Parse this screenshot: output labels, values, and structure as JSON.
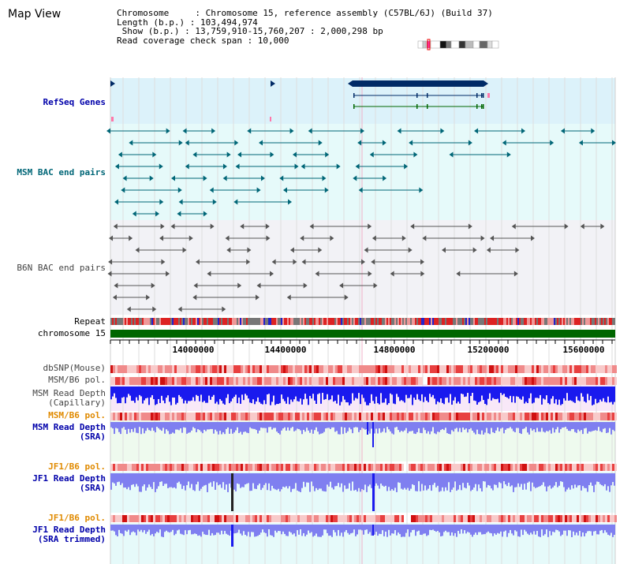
{
  "header": {
    "title": "Map View",
    "info_lines": [
      "Chromosome     : Chromosome 15, reference assembly (C57BL/6J) (Build 37)",
      "Length (b.p.) : 103,494,974",
      " Show (b.p.) : 13,759,910-15,760,207 : 2,000,298 bp",
      "Read coverage check span : 10,000"
    ]
  },
  "tracks": {
    "refseq": "RefSeq Genes",
    "msm_bac": "MSM BAC end pairs",
    "b6n_bac": "B6N BAC end pairs",
    "repeat": "Repeat",
    "chromosome": "chromosome 15",
    "dbsnp": "dbSNP(Mouse)",
    "msm_b6_pol_1": "MSM/B6 pol.",
    "msm_read_depth_cap_1": "MSM Read Depth",
    "msm_read_depth_cap_2": "(Capillary)",
    "msm_b6_pol_2": "MSM/B6 pol.",
    "msm_read_depth_sra_1": "MSM Read Depth",
    "msm_read_depth_sra_2": "(SRA)",
    "jf1_b6_pol_1": "JF1/B6 pol.",
    "jf1_read_depth_sra_1": "JF1 Read Depth",
    "jf1_read_depth_sra_2": "(SRA)",
    "jf1_b6_pol_2": "JF1/B6 pol.",
    "jf1_read_depth_trim_1": "JF1 Read Depth",
    "jf1_read_depth_trim_2": "(SRA trimmed)"
  },
  "axis": {
    "ticks": [
      "14000000",
      "14400000",
      "14800000",
      "15200000",
      "15600000"
    ]
  },
  "colors": {
    "refseq_bg": "#dcf2fa",
    "msm_bac_bg": "#e6fafa",
    "b6n_bg": "#f2f2f6",
    "chromosome_bar": "#006600",
    "gene_dark": "#002a66",
    "teal": "#006677",
    "grey_feature": "#555555",
    "depth_blue": "#1a1aee",
    "depth_light": "#7f7ff0"
  }
}
